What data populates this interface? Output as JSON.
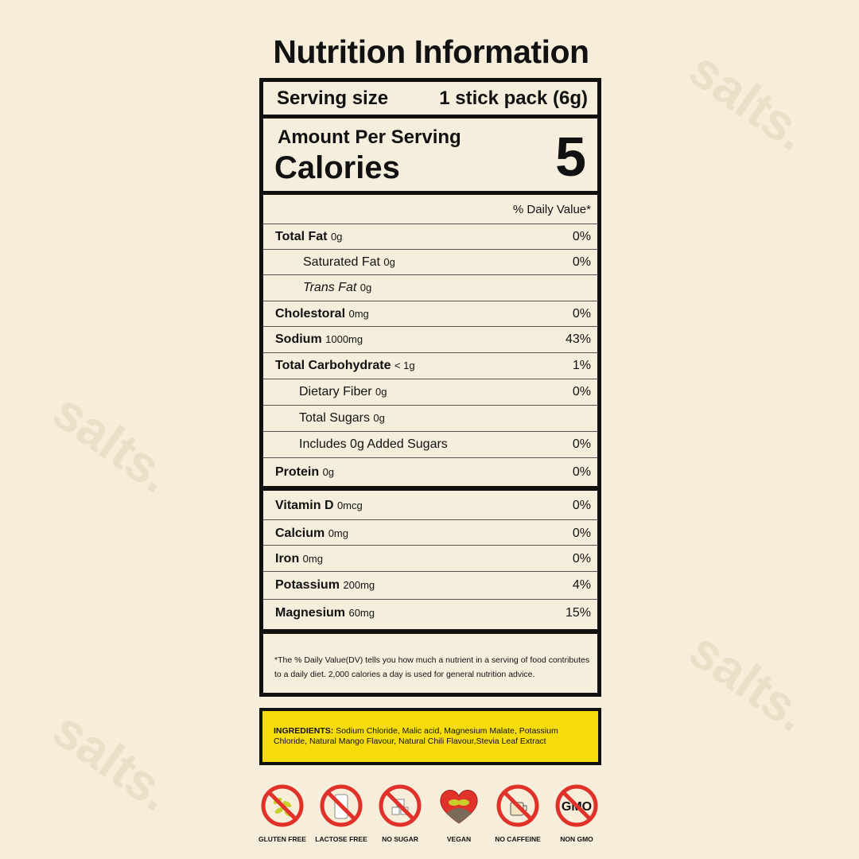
{
  "title": "Nutrition Information",
  "serving": {
    "label": "Serving size",
    "value": "1 stick pack (6g)"
  },
  "calories": {
    "amount_label": "Amount Per Serving",
    "label": "Calories",
    "value": "5"
  },
  "dv_header": "% Daily Value*",
  "nutrients": [
    {
      "name": "Total Fat",
      "amount": "0g",
      "dv": "0%",
      "bold": true,
      "indent": 0
    },
    {
      "name": "Saturated Fat",
      "amount": "0g",
      "dv": "0%",
      "bold": false,
      "indent": 1
    },
    {
      "name": "Trans Fat",
      "amount": "0g",
      "dv": "",
      "bold": false,
      "indent": 1
    },
    {
      "name": "Cholestoral",
      "amount": "0mg",
      "dv": "0%",
      "bold": true,
      "indent": 0
    },
    {
      "name": "Sodium",
      "amount": "1000mg",
      "dv": "43%",
      "bold": true,
      "indent": 0
    },
    {
      "name": "Total Carbohydrate",
      "amount": "< 1g",
      "dv": "1%",
      "bold": true,
      "indent": 0
    },
    {
      "name": "Dietary Fiber",
      "amount": "0g",
      "dv": "0%",
      "bold": false,
      "indent": 1
    },
    {
      "name": "Total Sugars",
      "amount": "0g",
      "dv": "",
      "bold": false,
      "indent": 1
    },
    {
      "name": "Includes 0g Added Sugars",
      "amount": "",
      "dv": "0%",
      "bold": false,
      "indent": 1
    },
    {
      "name": "Protein",
      "amount": "0g",
      "dv": "0%",
      "bold": true,
      "indent": 0
    }
  ],
  "vitamins": [
    {
      "name": "Vitamin D",
      "amount": "0mcg",
      "dv": "0%"
    },
    {
      "name": "Calcium",
      "amount": "0mg",
      "dv": "0%"
    },
    {
      "name": "Iron",
      "amount": "0mg",
      "dv": "0%"
    },
    {
      "name": "Potassium",
      "amount": "200mg",
      "dv": "4%"
    },
    {
      "name": "Magnesium",
      "amount": "60mg",
      "dv": "15%"
    }
  ],
  "footnote": "*The % Daily Value(DV) tells you how much a nutrient in a  serving of food contributes to a daily diet. 2,000 calories a day is used for general nutrition advice.",
  "ingredients": {
    "label": "INGREDIENTS:",
    "text": " Sodium Chloride, Malic acid, Magnesium Malate, Potassium Chloride, Natural Mango Flavour, Natural Chili Flavour,Stevia Leaf Extract"
  },
  "badges": [
    {
      "label": "GLUTEN FREE",
      "icon": "wheat-crossed-icon"
    },
    {
      "label": "LACTOSE FREE",
      "icon": "milk-crossed-icon"
    },
    {
      "label": "NO SUGAR",
      "icon": "sugar-cubes-crossed-icon"
    },
    {
      "label": "VEGAN",
      "icon": "heart-sprout-icon"
    },
    {
      "label": "NO CAFFEINE",
      "icon": "coffee-crossed-icon"
    },
    {
      "label": "NON GMO",
      "icon": "gmo-crossed-icon",
      "text": "GMO"
    }
  ],
  "colors": {
    "background": "#f6eedb",
    "ingredients_bg": "#f7dc0c",
    "badge_red": "#e0322a"
  },
  "watermark": "salts."
}
